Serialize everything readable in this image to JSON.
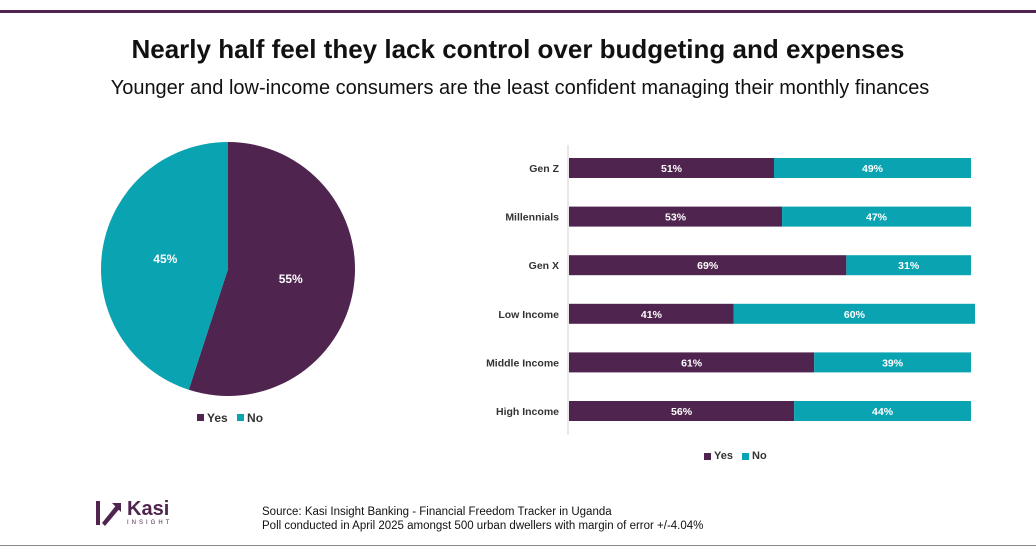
{
  "title": "Nearly half feel they lack control over budgeting and expenses",
  "subtitle": "Younger and low-income consumers are the least confident managing their monthly finances",
  "colors": {
    "yes": "#4f2550",
    "no": "#0aa3b2",
    "accent": "#4f2550"
  },
  "chart_data": [
    {
      "type": "pie",
      "title": "",
      "labels": [
        "Yes",
        "No"
      ],
      "values": [
        55,
        45
      ],
      "data_labels": [
        "55%",
        "45%"
      ],
      "legend": [
        "Yes",
        "No"
      ],
      "legend_position": "bottom"
    },
    {
      "type": "bar",
      "orientation": "horizontal",
      "stacked": true,
      "categories": [
        "Gen Z",
        "Millennials",
        "Gen X",
        "Low Income",
        "Middle Income",
        "High Income"
      ],
      "series": [
        {
          "name": "Yes",
          "values": [
            51,
            53,
            69,
            41,
            61,
            56
          ],
          "labels": [
            "51%",
            "53%",
            "69%",
            "41%",
            "61%",
            "56%"
          ]
        },
        {
          "name": "No",
          "values": [
            49,
            47,
            31,
            60,
            39,
            44
          ],
          "labels": [
            "49%",
            "47%",
            "31%",
            "60%",
            "39%",
            "44%"
          ]
        }
      ],
      "legend": [
        "Yes",
        "No"
      ],
      "legend_position": "bottom",
      "xlim": [
        0,
        101
      ]
    }
  ],
  "logo": {
    "name": "Kasi",
    "sub": "INSIGHT"
  },
  "source": {
    "line1": "Source: Kasi Insight Banking - Financial Freedom Tracker  in Uganda",
    "line2": "Poll conducted  in April 2025 amongst 500 urban dwellers with margin of error +/-4.04%"
  }
}
